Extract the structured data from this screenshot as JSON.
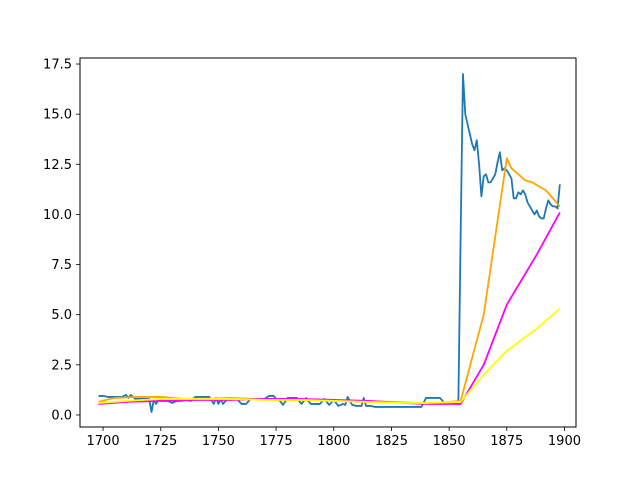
{
  "chart_data": {
    "type": "line",
    "title": "",
    "xlabel": "",
    "ylabel": "",
    "xlim": [
      1690,
      1905
    ],
    "ylim": [
      -0.6,
      17.8
    ],
    "xticks": [
      1700,
      1725,
      1750,
      1775,
      1800,
      1825,
      1850,
      1875,
      1900
    ],
    "yticks": [
      0.0,
      2.5,
      5.0,
      7.5,
      10.0,
      12.5,
      15.0,
      17.5
    ],
    "xtick_labels": [
      "1700",
      "1725",
      "1750",
      "1775",
      "1800",
      "1825",
      "1850",
      "1875",
      "1900"
    ],
    "ytick_labels": [
      "0.0",
      "2.5",
      "5.0",
      "7.5",
      "10.0",
      "12.5",
      "15.0",
      "17.5"
    ],
    "grid": false,
    "legend": "none",
    "series": [
      {
        "color": "#1f77b4",
        "x": [
          1698,
          1700,
          1702,
          1704,
          1706,
          1708,
          1710,
          1711,
          1712,
          1714,
          1716,
          1718,
          1720,
          1721,
          1722,
          1723,
          1724,
          1726,
          1728,
          1730,
          1732,
          1734,
          1736,
          1738,
          1740,
          1742,
          1744,
          1746,
          1748,
          1749,
          1750,
          1751,
          1752,
          1754,
          1756,
          1758,
          1760,
          1762,
          1764,
          1766,
          1768,
          1770,
          1772,
          1774,
          1775,
          1776,
          1778,
          1780,
          1782,
          1784,
          1786,
          1788,
          1790,
          1792,
          1794,
          1796,
          1798,
          1800,
          1802,
          1804,
          1805,
          1806,
          1808,
          1810,
          1812,
          1813,
          1814,
          1816,
          1818,
          1820,
          1822,
          1824,
          1826,
          1828,
          1830,
          1832,
          1834,
          1836,
          1838,
          1840,
          1842,
          1844,
          1846,
          1848,
          1850,
          1852,
          1854,
          1855,
          1856,
          1857,
          1858,
          1859,
          1860,
          1861,
          1862,
          1863,
          1864,
          1865,
          1866,
          1867,
          1868,
          1869,
          1870,
          1871,
          1872,
          1873,
          1874,
          1875,
          1876,
          1877,
          1878,
          1879,
          1880,
          1881,
          1882,
          1883,
          1884,
          1885,
          1886,
          1887,
          1888,
          1889,
          1890,
          1891,
          1892,
          1893,
          1894,
          1895,
          1896,
          1897,
          1898
        ],
        "y": [
          0.95,
          0.95,
          0.9,
          0.9,
          0.9,
          0.9,
          1.0,
          0.85,
          1.0,
          0.8,
          0.8,
          0.8,
          0.8,
          0.15,
          0.75,
          0.55,
          0.75,
          0.7,
          0.7,
          0.6,
          0.7,
          0.7,
          0.75,
          0.7,
          0.9,
          0.9,
          0.9,
          0.9,
          0.55,
          0.85,
          0.55,
          0.8,
          0.55,
          0.8,
          0.8,
          0.8,
          0.55,
          0.55,
          0.8,
          0.8,
          0.8,
          0.8,
          0.95,
          0.95,
          0.8,
          0.8,
          0.5,
          0.85,
          0.85,
          0.85,
          0.55,
          0.85,
          0.55,
          0.55,
          0.55,
          0.8,
          0.5,
          0.75,
          0.45,
          0.55,
          0.5,
          0.9,
          0.5,
          0.45,
          0.45,
          0.85,
          0.45,
          0.45,
          0.4,
          0.4,
          0.4,
          0.4,
          0.4,
          0.4,
          0.4,
          0.4,
          0.4,
          0.4,
          0.4,
          0.85,
          0.85,
          0.85,
          0.85,
          0.6,
          0.6,
          0.6,
          0.6,
          9.0,
          17.0,
          15.0,
          14.5,
          14.0,
          13.5,
          13.2,
          13.7,
          12.5,
          10.9,
          11.9,
          12.0,
          11.6,
          11.6,
          11.8,
          12.0,
          12.6,
          13.1,
          12.2,
          12.3,
          12.2,
          12.0,
          11.8,
          10.8,
          10.8,
          11.1,
          11.0,
          11.2,
          11.0,
          10.6,
          10.4,
          10.2,
          10.0,
          10.2,
          9.9,
          9.8,
          9.8,
          10.3,
          10.7,
          10.5,
          10.4,
          10.4,
          10.3,
          11.5
        ]
      },
      {
        "color": "#ffa500",
        "x": [
          1698,
          1705,
          1715,
          1725,
          1735,
          1745,
          1755,
          1765,
          1775,
          1785,
          1795,
          1805,
          1815,
          1825,
          1835,
          1845,
          1855,
          1865,
          1875,
          1877,
          1880,
          1883,
          1886,
          1889,
          1892,
          1895,
          1898
        ],
        "y": [
          0.65,
          0.85,
          0.9,
          0.9,
          0.8,
          0.8,
          0.85,
          0.8,
          0.75,
          0.75,
          0.75,
          0.7,
          0.7,
          0.65,
          0.6,
          0.6,
          0.7,
          5.0,
          12.8,
          12.3,
          12.0,
          11.7,
          11.6,
          11.4,
          11.2,
          10.8,
          10.4
        ]
      },
      {
        "color": "#ff00ff",
        "x": [
          1698,
          1710,
          1725,
          1740,
          1755,
          1770,
          1785,
          1800,
          1815,
          1830,
          1840,
          1855,
          1865,
          1875,
          1888,
          1898
        ],
        "y": [
          0.55,
          0.65,
          0.7,
          0.75,
          0.75,
          0.8,
          0.8,
          0.75,
          0.7,
          0.6,
          0.55,
          0.55,
          2.5,
          5.5,
          8.0,
          10.1
        ]
      },
      {
        "color": "#ffff00",
        "x": [
          1698,
          1710,
          1725,
          1740,
          1755,
          1770,
          1785,
          1800,
          1815,
          1830,
          1840,
          1855,
          1865,
          1875,
          1888,
          1898
        ],
        "y": [
          0.6,
          0.7,
          0.8,
          0.8,
          0.8,
          0.75,
          0.75,
          0.7,
          0.65,
          0.6,
          0.6,
          0.65,
          2.0,
          3.2,
          4.3,
          5.3
        ]
      }
    ]
  }
}
